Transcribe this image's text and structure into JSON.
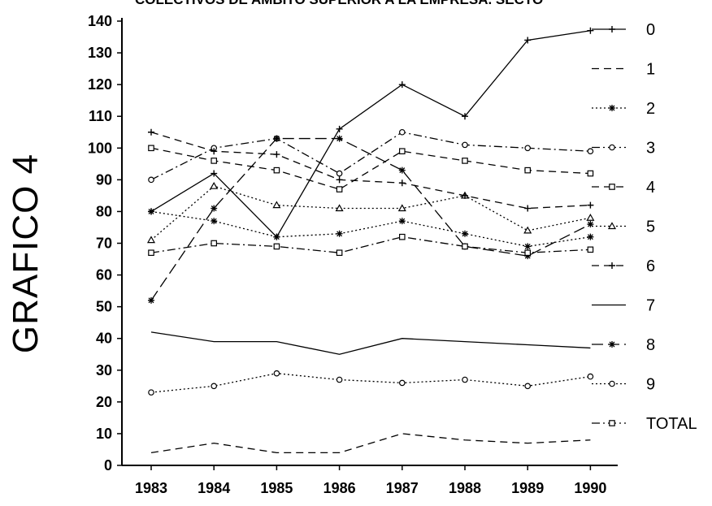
{
  "header": {
    "title": "COLECTIVOS DE AMBITO SUPERIOR A LA EMPRESA. SECTO",
    "side_title": "GRAFICO 4"
  },
  "chart_data": {
    "type": "line",
    "title": "COLECTIVOS DE AMBITO SUPERIOR A LA EMPRESA. SECTO",
    "xlabel": "",
    "ylabel": "",
    "x": [
      "1983",
      "1984",
      "1985",
      "1986",
      "1987",
      "1988",
      "1989",
      "1990"
    ],
    "ylim": [
      0,
      140
    ],
    "yticks": [
      0,
      10,
      20,
      30,
      40,
      50,
      60,
      70,
      80,
      90,
      100,
      110,
      120,
      130,
      140
    ],
    "grid": false,
    "legend_position": "right",
    "series": [
      {
        "name": "0",
        "marker": "plus",
        "dash": "solid",
        "values": [
          80,
          92,
          72,
          106,
          120,
          110,
          134,
          137
        ]
      },
      {
        "name": "1",
        "marker": "none",
        "dash": "dashed",
        "values": [
          4,
          7,
          4,
          4,
          10,
          8,
          7,
          8
        ]
      },
      {
        "name": "2",
        "marker": "star",
        "dash": "dotted",
        "values": [
          80,
          77,
          72,
          73,
          77,
          73,
          69,
          72
        ]
      },
      {
        "name": "3",
        "marker": "circle",
        "dash": "dashdot",
        "values": [
          90,
          100,
          103,
          92,
          105,
          101,
          100,
          99
        ]
      },
      {
        "name": "4",
        "marker": "square",
        "dash": "dashed",
        "values": [
          100,
          96,
          93,
          87,
          99,
          96,
          93,
          92
        ]
      },
      {
        "name": "5",
        "marker": "triangle",
        "dash": "dotted",
        "values": [
          71,
          88,
          82,
          81,
          81,
          85,
          74,
          78
        ]
      },
      {
        "name": "6",
        "marker": "plus",
        "dash": "dashed",
        "values": [
          105,
          99,
          98,
          90,
          89,
          85,
          81,
          82
        ]
      },
      {
        "name": "7",
        "marker": "none",
        "dash": "solid",
        "values": [
          42,
          39,
          39,
          35,
          40,
          39,
          38,
          37
        ]
      },
      {
        "name": "8",
        "marker": "star",
        "dash": "longdash",
        "values": [
          52,
          81,
          103,
          103,
          93,
          69,
          66,
          76
        ]
      },
      {
        "name": "9",
        "marker": "circle",
        "dash": "dotted",
        "values": [
          23,
          25,
          29,
          27,
          26,
          27,
          25,
          28
        ]
      },
      {
        "name": "TOTAL",
        "marker": "square",
        "dash": "dashdot",
        "values": [
          67,
          70,
          69,
          67,
          72,
          69,
          67,
          68
        ]
      }
    ]
  }
}
